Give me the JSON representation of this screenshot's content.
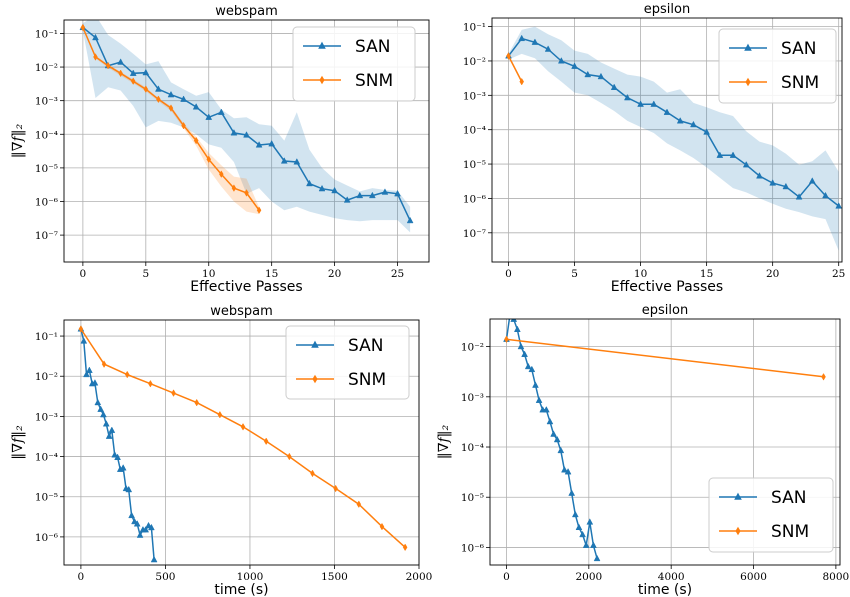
{
  "colors": {
    "SAN": "#1f77b4",
    "SNM": "#ff7f0e",
    "band_SAN": "#1f77b4",
    "band_SNM": "#ff7f0e",
    "grid": "#b0b0b0"
  },
  "chart_data": [
    {
      "type": "line",
      "title": "webspam",
      "xlabel": "Effective Passes",
      "ylabel": "‖∇f‖₂",
      "yscale": "log",
      "xlim": [
        -1.5,
        27.5
      ],
      "ylim_exp": [
        -7.8,
        -0.6
      ],
      "xticks": [
        0,
        5,
        10,
        15,
        20,
        25
      ],
      "xtick_labels": [
        "0",
        "5",
        "10",
        "15",
        "20",
        "25"
      ],
      "yticks_exp": [
        -7,
        -6,
        -5,
        -4,
        -3,
        -2,
        -1
      ],
      "ytick_labels": [
        "10⁻⁷",
        "10⁻⁶",
        "10⁻⁵",
        "10⁻⁴",
        "10⁻³",
        "10⁻²",
        "10⁻¹"
      ],
      "grid": true,
      "legend_position": "upper-right",
      "series": [
        {
          "name": "SAN",
          "marker": "triangle",
          "x": [
            0,
            1,
            2,
            3,
            4,
            5,
            6,
            7,
            8,
            9,
            10,
            11,
            12,
            13,
            14,
            15,
            16,
            17,
            18,
            19,
            20,
            21,
            22,
            23,
            24,
            25,
            26
          ],
          "y": [
            0.15,
            0.075,
            0.011,
            0.014,
            0.0065,
            0.0068,
            0.0022,
            0.0015,
            0.0011,
            0.00065,
            0.00032,
            0.00045,
            0.00011,
            9.5e-05,
            4.8e-05,
            5.2e-05,
            1.6e-05,
            1.5e-05,
            3.4e-06,
            2.4e-06,
            2.1e-06,
            1.1e-06,
            1.5e-06,
            1.5e-06,
            1.9e-06,
            1.7e-06,
            2.7e-07
          ],
          "band_low": [
            0.12,
            0.0012,
            0.0025,
            0.002,
            0.0007,
            0.00016,
            0.00025,
            0.00022,
            0.00016,
            0.0001,
            5e-05,
            4e-05,
            1.5e-05,
            1.7e-06,
            2.5e-06,
            1e-06,
            5.5e-07,
            7e-07,
            5e-07,
            4e-07,
            3.2e-07,
            2.8e-07,
            2.6e-07,
            2.8e-07,
            2.8e-07,
            2.8e-07,
            1.2e-07
          ],
          "band_high": [
            0.2,
            0.35,
            0.09,
            0.05,
            0.025,
            0.012,
            0.015,
            0.0035,
            0.0022,
            0.0014,
            0.0018,
            0.00055,
            0.0003,
            0.00032,
            0.0002,
            0.00018,
            6.5e-05,
            0.00045,
            3.5e-05,
            1e-05,
            4.5e-06,
            3e-06,
            2e-06,
            2.5e-06,
            2.2e-06,
            2.1e-06,
            7e-07
          ]
        },
        {
          "name": "SNM",
          "marker": "diamond",
          "x": [
            0,
            1,
            2,
            3,
            4,
            5,
            6,
            7,
            8,
            9,
            10,
            11,
            12,
            13,
            14
          ],
          "y": [
            0.15,
            0.02,
            0.011,
            0.0065,
            0.0038,
            0.0022,
            0.0011,
            0.0006,
            0.00018,
            6.5e-05,
            1.8e-05,
            6.5e-06,
            2.5e-06,
            1.8e-06,
            5.5e-07
          ],
          "band_low": [
            0.14,
            0.018,
            0.0095,
            0.0055,
            0.0033,
            0.0019,
            0.00095,
            0.0005,
            0.00015,
            4.5e-05,
            9e-06,
            2.8e-06,
            1e-06,
            5e-07,
            4.2e-07
          ],
          "band_high": [
            0.16,
            0.022,
            0.012,
            0.0072,
            0.0043,
            0.0025,
            0.0012,
            0.00068,
            0.00021,
            8.5e-05,
            2.8e-05,
            1.2e-05,
            5.5e-06,
            4.8e-06,
            6.8e-07
          ]
        }
      ]
    },
    {
      "type": "line",
      "title": "epsilon",
      "xlabel": "Effective Passes",
      "ylabel": "",
      "yscale": "log",
      "xlim": [
        -1.25,
        25.25
      ],
      "ylim_exp": [
        -7.85,
        -0.75
      ],
      "xticks": [
        0,
        5,
        10,
        15,
        20,
        25
      ],
      "xtick_labels": [
        "0",
        "5",
        "10",
        "15",
        "20",
        "25"
      ],
      "yticks_exp": [
        -7,
        -6,
        -5,
        -4,
        -3,
        -2,
        -1
      ],
      "ytick_labels": [
        "10⁻⁷",
        "10⁻⁶",
        "10⁻⁵",
        "10⁻⁴",
        "10⁻³",
        "10⁻²",
        "10⁻¹"
      ],
      "grid": true,
      "legend_position": "upper-right",
      "series": [
        {
          "name": "SAN",
          "marker": "triangle",
          "x": [
            0,
            1,
            2,
            3,
            4,
            5,
            6,
            7,
            8,
            9,
            10,
            11,
            12,
            13,
            14,
            15,
            16,
            17,
            18,
            19,
            20,
            21,
            22,
            23,
            24,
            25
          ],
          "y": [
            0.014,
            0.045,
            0.035,
            0.022,
            0.01,
            0.007,
            0.004,
            0.0035,
            0.0017,
            0.00085,
            0.00055,
            0.00055,
            0.00032,
            0.00018,
            0.00014,
            8.5e-05,
            1.8e-05,
            1.8e-05,
            9.5e-06,
            4.5e-06,
            2.8e-06,
            2.2e-06,
            1.1e-06,
            3.2e-06,
            1.2e-06,
            6e-07
          ],
          "band_low": [
            0.011,
            0.016,
            0.012,
            0.005,
            0.0025,
            0.0012,
            0.001,
            0.0006,
            0.00035,
            0.00018,
            0.00012,
            8e-05,
            4e-05,
            2.5e-05,
            1.5e-05,
            8e-06,
            4e-06,
            2e-06,
            1.5e-06,
            1e-06,
            7e-07,
            5e-07,
            4e-07,
            3e-07,
            2.5e-07,
            3e-08
          ],
          "band_high": [
            0.016,
            0.08,
            0.1,
            0.06,
            0.04,
            0.02,
            0.016,
            0.009,
            0.006,
            0.004,
            0.0035,
            0.0025,
            0.0012,
            0.0015,
            0.0006,
            0.00045,
            0.00032,
            0.00025,
            9e-05,
            4.5e-05,
            3.5e-05,
            2e-05,
            9.5e-06,
            1.2e-05,
            2.5e-05,
            6e-06
          ]
        },
        {
          "name": "SNM",
          "marker": "diamond",
          "x": [
            0,
            1
          ],
          "y": [
            0.014,
            0.0025
          ],
          "band_low": [
            0.013,
            0.0023
          ],
          "band_high": [
            0.015,
            0.0027
          ]
        }
      ]
    },
    {
      "type": "line",
      "title": "webspam",
      "xlabel": "time (s)",
      "ylabel": "‖∇f‖₂",
      "yscale": "log",
      "xlim": [
        -100,
        2000
      ],
      "ylim_exp": [
        -6.7,
        -0.6
      ],
      "xticks": [
        0,
        500,
        1000,
        1500,
        2000
      ],
      "xtick_labels": [
        "0",
        "500",
        "1000",
        "1500",
        "2000"
      ],
      "yticks_exp": [
        -6,
        -5,
        -4,
        -3,
        -2,
        -1
      ],
      "ytick_labels": [
        "10⁻⁶",
        "10⁻⁵",
        "10⁻⁴",
        "10⁻³",
        "10⁻²",
        "10⁻¹"
      ],
      "grid": true,
      "legend_position": "upper-right",
      "series": [
        {
          "name": "SAN",
          "marker": "triangle",
          "x": [
            0,
            17,
            33,
            50,
            67,
            83,
            100,
            117,
            133,
            150,
            167,
            183,
            200,
            217,
            233,
            250,
            267,
            283,
            300,
            317,
            333,
            350,
            367,
            383,
            400,
            417,
            433
          ],
          "y": [
            0.15,
            0.075,
            0.011,
            0.014,
            0.0065,
            0.0068,
            0.0022,
            0.0015,
            0.0011,
            0.00065,
            0.00032,
            0.00045,
            0.00011,
            9.5e-05,
            4.8e-05,
            5.2e-05,
            1.6e-05,
            1.5e-05,
            3.4e-06,
            2.4e-06,
            2.1e-06,
            1.1e-06,
            1.5e-06,
            1.5e-06,
            1.9e-06,
            1.7e-06,
            2.7e-07
          ]
        },
        {
          "name": "SNM",
          "marker": "diamond",
          "x": [
            0,
            137,
            274,
            411,
            548,
            685,
            822,
            959,
            1096,
            1233,
            1370,
            1507,
            1644,
            1781,
            1918
          ],
          "y": [
            0.15,
            0.02,
            0.011,
            0.0065,
            0.0038,
            0.0022,
            0.0011,
            0.00055,
            0.00024,
            0.0001,
            3.8e-05,
            1.6e-05,
            6.5e-06,
            1.8e-06,
            5.5e-07
          ]
        }
      ]
    },
    {
      "type": "line",
      "title": "epsilon",
      "xlabel": "time (s)",
      "ylabel": "‖∇f‖₂",
      "yscale": "log",
      "xlim": [
        -400,
        8100
      ],
      "ylim_exp": [
        -6.35,
        -1.45
      ],
      "xticks": [
        0,
        2000,
        4000,
        6000,
        8000
      ],
      "xtick_labels": [
        "0",
        "2000",
        "4000",
        "6000",
        "8000"
      ],
      "yticks_exp": [
        -6,
        -5,
        -4,
        -3,
        -2
      ],
      "ytick_labels": [
        "10⁻⁶",
        "10⁻⁵",
        "10⁻⁴",
        "10⁻³",
        "10⁻²"
      ],
      "grid": true,
      "legend_position": "lower-right",
      "series": [
        {
          "name": "SAN",
          "marker": "triangle",
          "x": [
            0,
            88,
            176,
            264,
            352,
            440,
            528,
            616,
            704,
            792,
            880,
            968,
            1056,
            1144,
            1232,
            1320,
            1408,
            1496,
            1584,
            1672,
            1760,
            1848,
            1936,
            2024,
            2112,
            2200
          ],
          "y": [
            0.014,
            0.045,
            0.035,
            0.022,
            0.01,
            0.007,
            0.004,
            0.0035,
            0.0017,
            0.00085,
            0.00055,
            0.00055,
            0.00032,
            0.00018,
            0.00014,
            8.5e-05,
            3.5e-05,
            3.2e-05,
            1.2e-05,
            4.5e-06,
            2.5e-06,
            1.8e-06,
            1.1e-06,
            3.2e-06,
            1.1e-06,
            6e-07
          ]
        },
        {
          "name": "SNM",
          "marker": "diamond",
          "x": [
            0,
            7700
          ],
          "y": [
            0.014,
            0.0025
          ]
        }
      ]
    }
  ]
}
